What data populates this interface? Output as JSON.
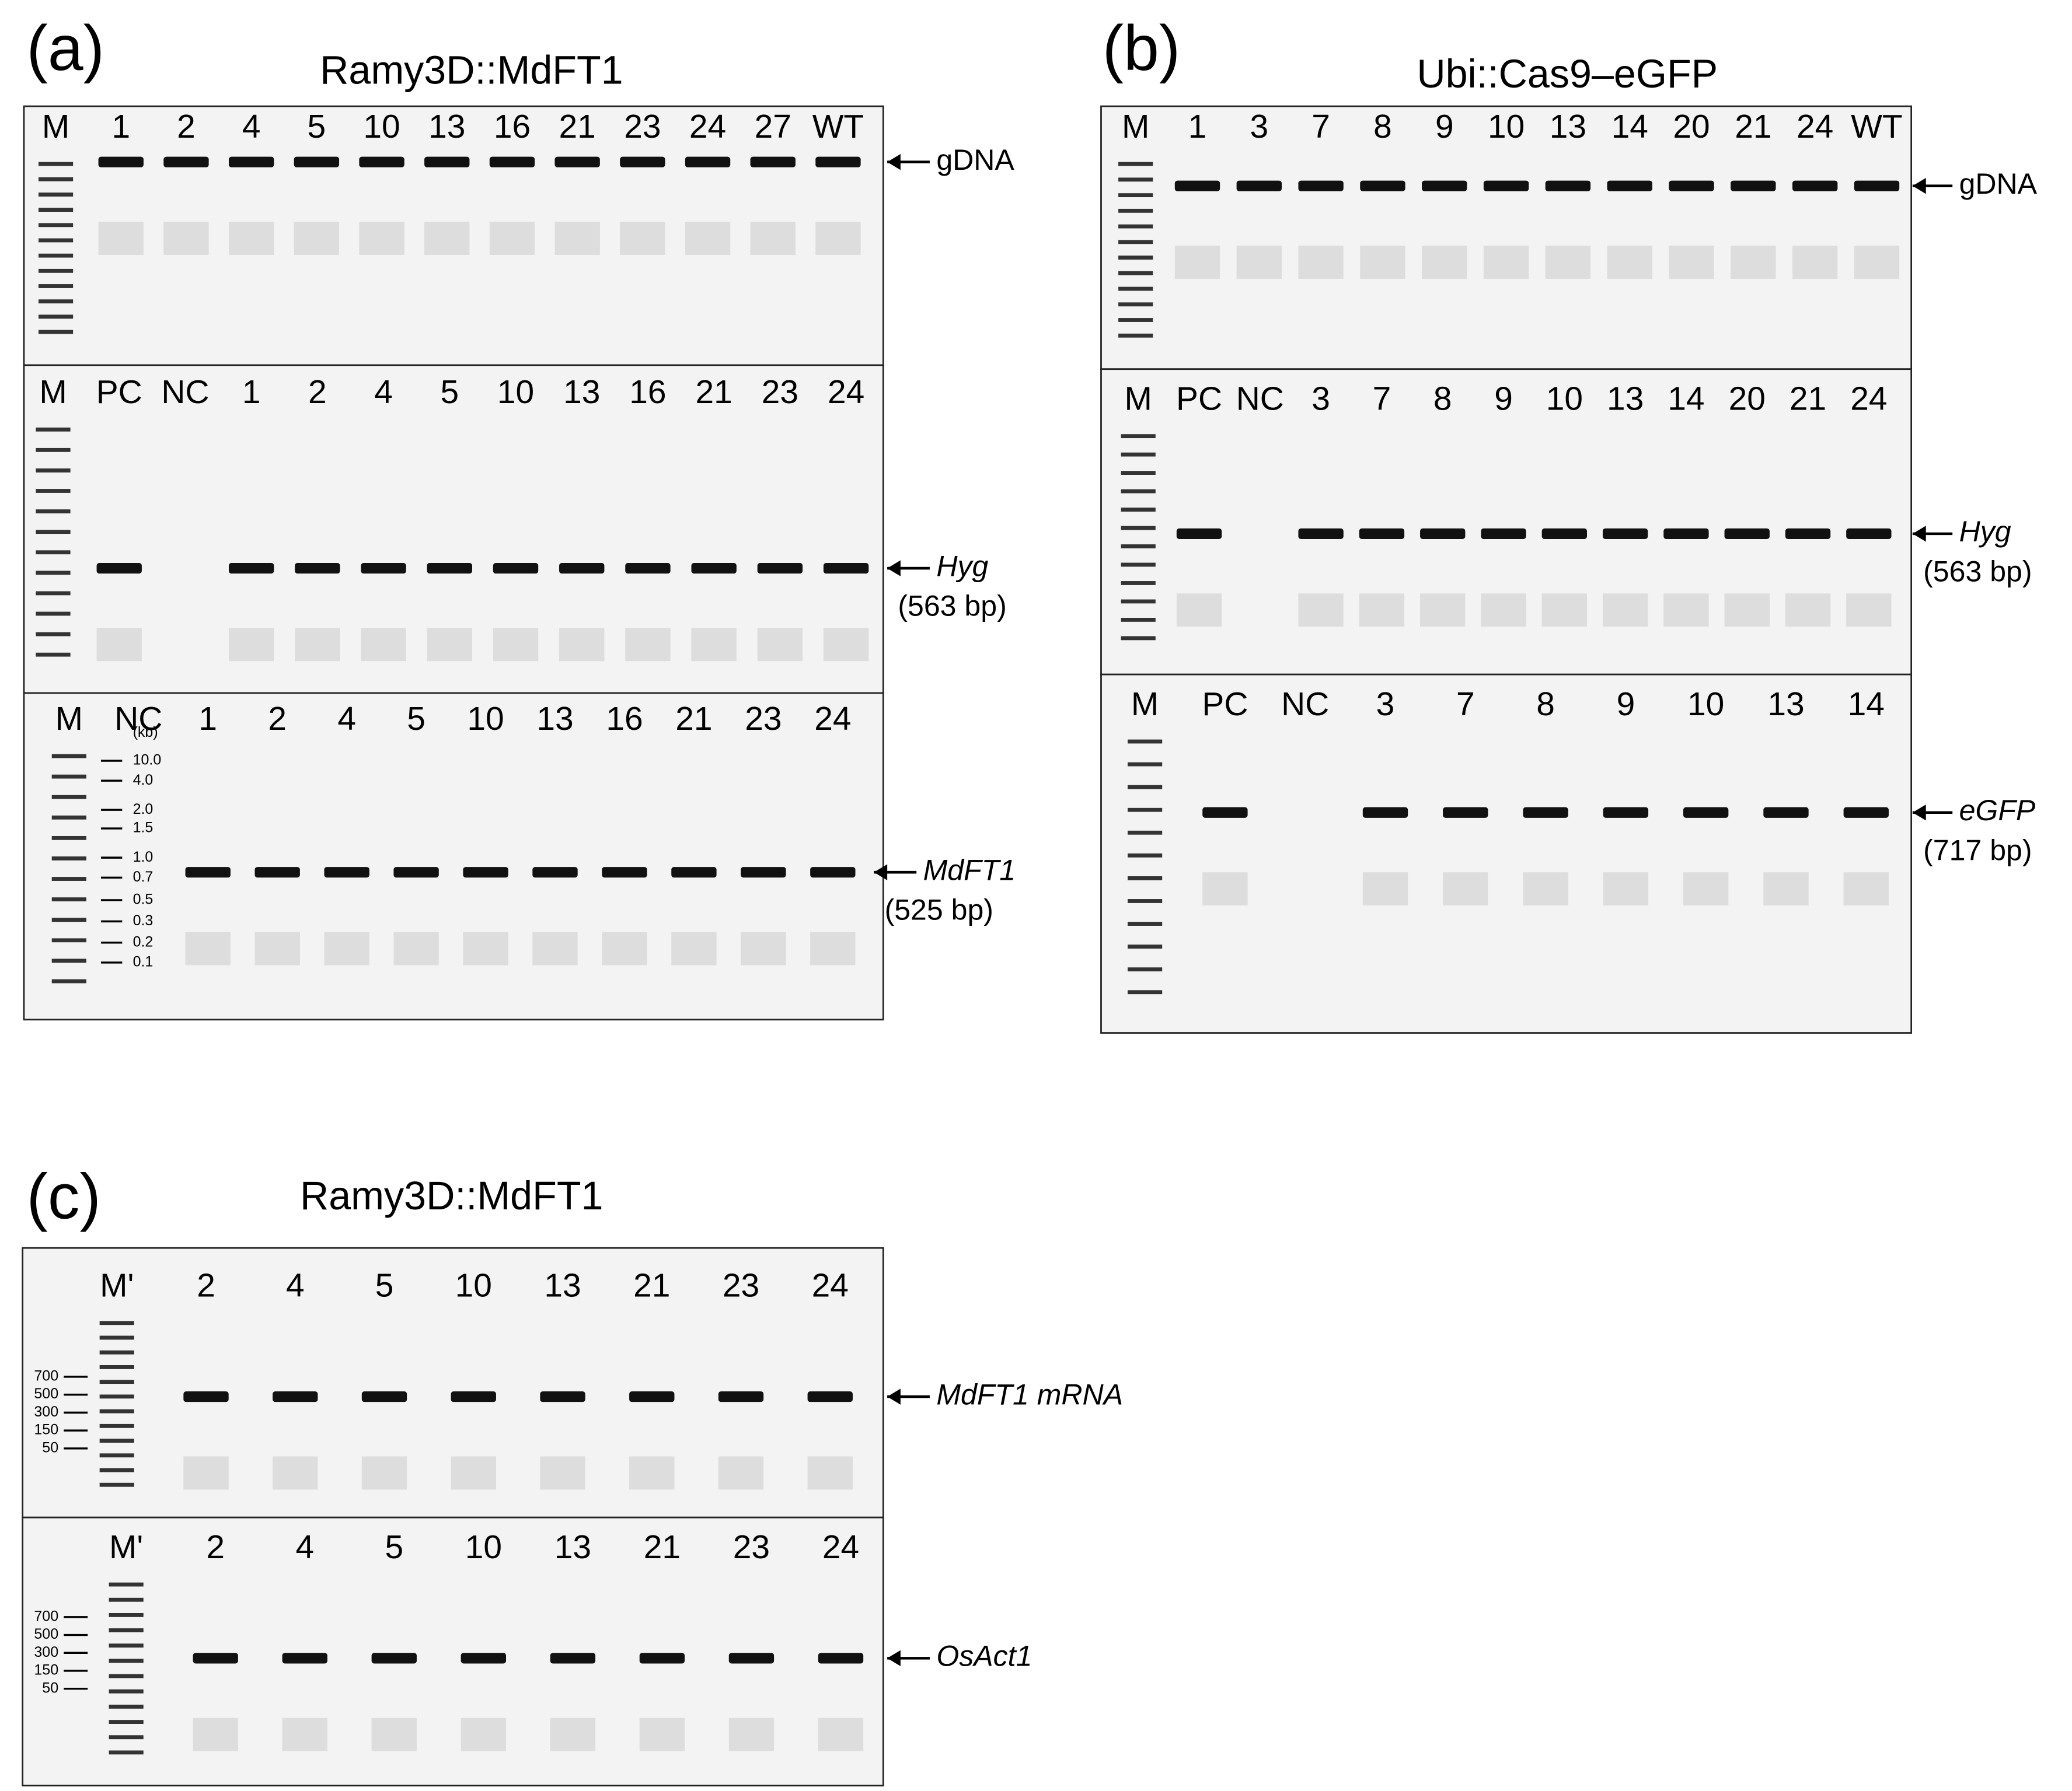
{
  "panels": [
    {
      "label": "(a)",
      "title": "Ramy3D::MdFT1",
      "gels": [
        {
          "lanes": [
            "M",
            "1",
            "2",
            "4",
            "5",
            "10",
            "13",
            "16",
            "21",
            "23",
            "24",
            "27",
            "WT"
          ],
          "marker": "gDNA"
        },
        {
          "lanes": [
            "M",
            "PC",
            "NC",
            "1",
            "2",
            "4",
            "5",
            "10",
            "13",
            "16",
            "21",
            "23",
            "24"
          ],
          "marker": "Hyg",
          "size": "(563 bp)"
        },
        {
          "lanes": [
            "M",
            "NC",
            "1",
            "2",
            "4",
            "5",
            "10",
            "13",
            "16",
            "21",
            "23",
            "24"
          ],
          "marker": "MdFT1",
          "size": "(525 bp)",
          "ladder_unit": "(kb)",
          "ladder": [
            "10.0",
            "4.0",
            "2.0",
            "1.5",
            "1.0",
            "0.7",
            "0.5",
            "0.3",
            "0.2",
            "0.1"
          ]
        }
      ]
    },
    {
      "label": "(b)",
      "title": "Ubi::Cas9–eGFP",
      "gels": [
        {
          "lanes": [
            "M",
            "1",
            "3",
            "7",
            "8",
            "9",
            "10",
            "13",
            "14",
            "20",
            "21",
            "24",
            "WT"
          ],
          "marker": "gDNA"
        },
        {
          "lanes": [
            "M",
            "PC",
            "NC",
            "3",
            "7",
            "8",
            "9",
            "10",
            "13",
            "14",
            "20",
            "21",
            "24"
          ],
          "marker": "Hyg",
          "size": "(563 bp)"
        },
        {
          "lanes": [
            "M",
            "PC",
            "NC",
            "3",
            "7",
            "8",
            "9",
            "10",
            "13",
            "14"
          ],
          "marker": "eGFP",
          "size": "(717 bp)"
        }
      ]
    },
    {
      "label": "(c)",
      "title": "Ramy3D::MdFT1",
      "gels": [
        {
          "lanes": [
            "M'",
            "2",
            "4",
            "5",
            "10",
            "13",
            "21",
            "23",
            "24"
          ],
          "marker": "MdFT1 mRNA",
          "ladder": [
            "700",
            "500",
            "300",
            "150",
            "50"
          ]
        },
        {
          "lanes": [
            "M'",
            "2",
            "4",
            "5",
            "10",
            "13",
            "21",
            "23",
            "24"
          ],
          "marker": "OsAct1",
          "ladder": [
            "700",
            "500",
            "300",
            "150",
            "50"
          ]
        }
      ]
    }
  ]
}
